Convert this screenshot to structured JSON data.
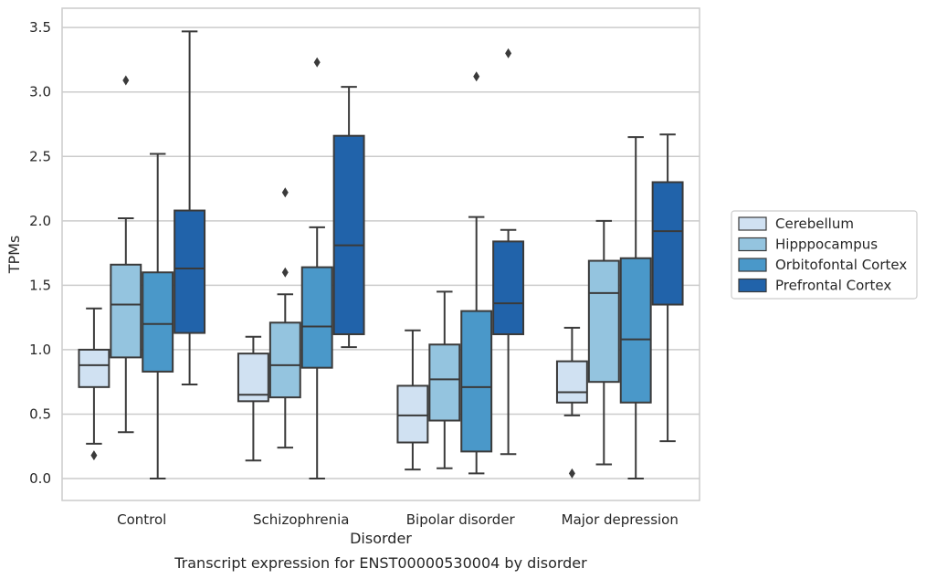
{
  "chart_data": {
    "type": "boxplot",
    "title": "",
    "caption": "Transcript expression for ENST00000530004 by disorder",
    "xlabel": "Disorder",
    "ylabel": "TPMs",
    "ylim": [
      -0.17,
      3.65
    ],
    "yticks": [
      0.0,
      0.5,
      1.0,
      1.5,
      2.0,
      2.5,
      3.0,
      3.5
    ],
    "ytick_labels": [
      "0.0",
      "0.5",
      "1.0",
      "1.5",
      "2.0",
      "2.5",
      "3.0",
      "3.5"
    ],
    "grid": "horizontal",
    "legend_position": "right",
    "categories": [
      "Control",
      "Schizophrenia",
      "Bipolar disorder",
      "Major depression"
    ],
    "series": [
      {
        "name": "Cerebellum",
        "color": "#d0e1f2",
        "boxes": [
          {
            "whislo": 0.27,
            "q1": 0.71,
            "med": 0.88,
            "q3": 1.0,
            "whishi": 1.32,
            "fliers": [
              0.18
            ]
          },
          {
            "whislo": 0.14,
            "q1": 0.6,
            "med": 0.65,
            "q3": 0.97,
            "whishi": 1.1,
            "fliers": []
          },
          {
            "whislo": 0.07,
            "q1": 0.28,
            "med": 0.49,
            "q3": 0.72,
            "whishi": 1.15,
            "fliers": []
          },
          {
            "whislo": 0.49,
            "q1": 0.59,
            "med": 0.67,
            "q3": 0.91,
            "whishi": 1.17,
            "fliers": [
              0.04
            ]
          }
        ]
      },
      {
        "name": "Hipppocampus",
        "color": "#94c4df",
        "boxes": [
          {
            "whislo": 0.36,
            "q1": 0.94,
            "med": 1.35,
            "q3": 1.66,
            "whishi": 2.02,
            "fliers": [
              3.09
            ]
          },
          {
            "whislo": 0.24,
            "q1": 0.63,
            "med": 0.88,
            "q3": 1.21,
            "whishi": 1.43,
            "fliers": [
              1.6,
              2.22
            ]
          },
          {
            "whislo": 0.08,
            "q1": 0.45,
            "med": 0.77,
            "q3": 1.04,
            "whishi": 1.45,
            "fliers": []
          },
          {
            "whislo": 0.11,
            "q1": 0.75,
            "med": 1.44,
            "q3": 1.69,
            "whishi": 2.0,
            "fliers": []
          }
        ]
      },
      {
        "name": "Orbitofontal Cortex",
        "color": "#4a98c9",
        "boxes": [
          {
            "whislo": 0.0,
            "q1": 0.83,
            "med": 1.2,
            "q3": 1.6,
            "whishi": 2.52,
            "fliers": []
          },
          {
            "whislo": 0.0,
            "q1": 0.86,
            "med": 1.18,
            "q3": 1.64,
            "whishi": 1.95,
            "fliers": [
              3.23
            ]
          },
          {
            "whislo": 0.04,
            "q1": 0.21,
            "med": 0.71,
            "q3": 1.3,
            "whishi": 2.03,
            "fliers": [
              3.12
            ]
          },
          {
            "whislo": 0.0,
            "q1": 0.59,
            "med": 1.08,
            "q3": 1.71,
            "whishi": 2.65,
            "fliers": []
          }
        ]
      },
      {
        "name": "Prefrontal Cortex",
        "color": "#2163aa",
        "boxes": [
          {
            "whislo": 0.73,
            "q1": 1.13,
            "med": 1.63,
            "q3": 2.08,
            "whishi": 3.47,
            "fliers": []
          },
          {
            "whislo": 1.02,
            "q1": 1.12,
            "med": 1.81,
            "q3": 2.66,
            "whishi": 3.04,
            "fliers": []
          },
          {
            "whislo": 0.19,
            "q1": 1.12,
            "med": 1.36,
            "q3": 1.84,
            "whishi": 1.93,
            "fliers": [
              3.3
            ]
          },
          {
            "whislo": 0.29,
            "q1": 1.35,
            "med": 1.92,
            "q3": 2.3,
            "whishi": 2.67,
            "fliers": []
          }
        ]
      }
    ]
  }
}
